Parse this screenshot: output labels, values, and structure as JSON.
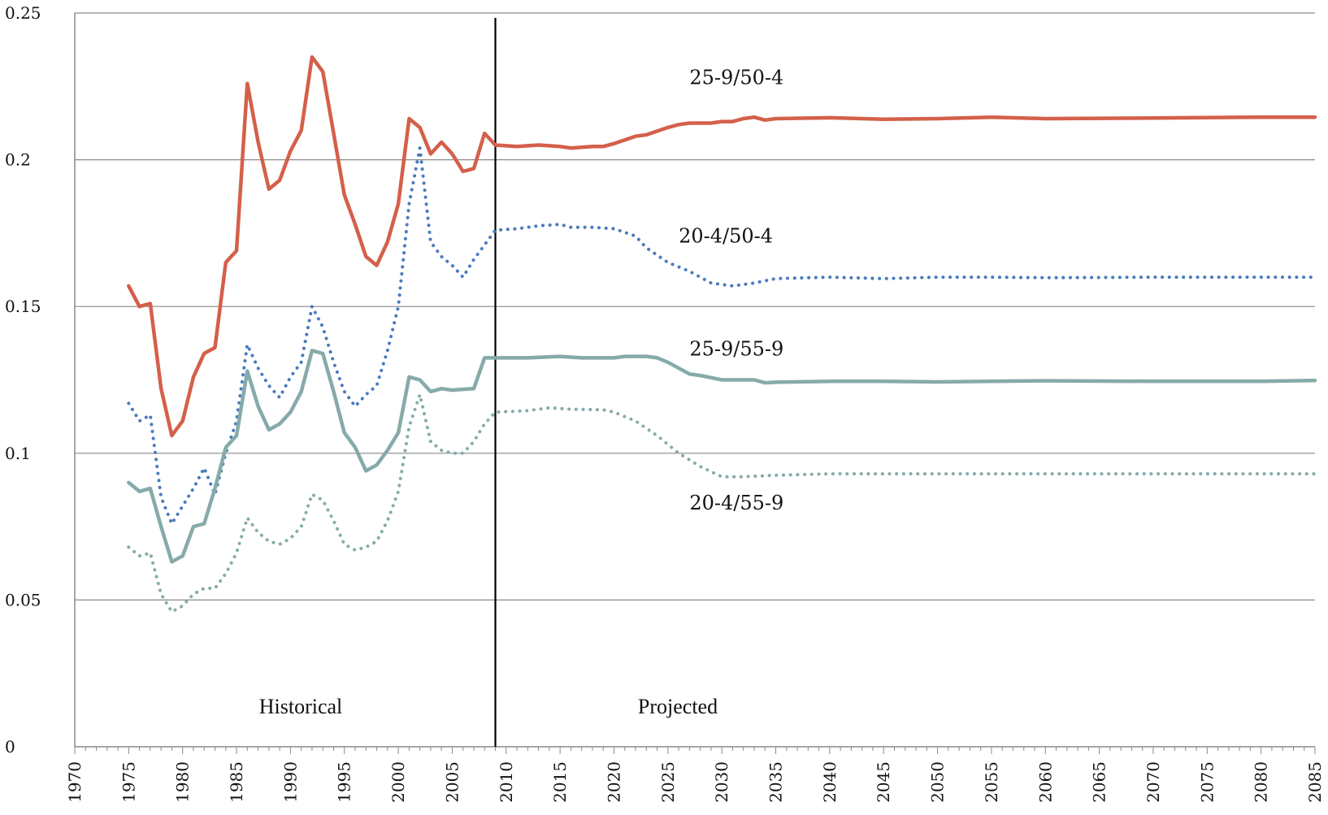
{
  "chart_data": {
    "type": "line",
    "title": "",
    "xlabel": "",
    "ylabel": "",
    "xlim": [
      1970,
      2085
    ],
    "ylim": [
      0,
      0.25
    ],
    "grid": true,
    "y_ticks": [
      {
        "value": 0,
        "label": "0"
      },
      {
        "value": 0.05,
        "label": "0.05"
      },
      {
        "value": 0.1,
        "label": "0.1"
      },
      {
        "value": 0.15,
        "label": "0.15"
      },
      {
        "value": 0.2,
        "label": "0.2"
      },
      {
        "value": 0.25,
        "label": "0.25"
      }
    ],
    "x_ticks": [
      "1970",
      "1975",
      "1980",
      "1985",
      "1990",
      "1995",
      "2000",
      "2005",
      "2010",
      "2015",
      "2020",
      "2025",
      "2030",
      "2035",
      "2040",
      "2045",
      "2050",
      "2055",
      "2060",
      "2065",
      "2070",
      "2075",
      "2080",
      "2085"
    ],
    "divider_year": 2009,
    "region_labels": {
      "historical": "Historical",
      "projected": "Projected"
    },
    "series": [
      {
        "name": "25-9/50-4",
        "color": "#d4604a",
        "style": "solid",
        "label_at": [
          2027,
          0.228
        ],
        "points": [
          [
            1975,
            0.157
          ],
          [
            1976,
            0.15
          ],
          [
            1977,
            0.151
          ],
          [
            1978,
            0.122
          ],
          [
            1979,
            0.106
          ],
          [
            1980,
            0.111
          ],
          [
            1981,
            0.126
          ],
          [
            1982,
            0.134
          ],
          [
            1983,
            0.136
          ],
          [
            1984,
            0.165
          ],
          [
            1985,
            0.169
          ],
          [
            1986,
            0.226
          ],
          [
            1987,
            0.206
          ],
          [
            1988,
            0.19
          ],
          [
            1989,
            0.193
          ],
          [
            1990,
            0.203
          ],
          [
            1991,
            0.21
          ],
          [
            1992,
            0.235
          ],
          [
            1993,
            0.23
          ],
          [
            1994,
            0.209
          ],
          [
            1995,
            0.188
          ],
          [
            1996,
            0.178
          ],
          [
            1997,
            0.167
          ],
          [
            1998,
            0.164
          ],
          [
            1999,
            0.172
          ],
          [
            2000,
            0.185
          ],
          [
            2001,
            0.214
          ],
          [
            2002,
            0.211
          ],
          [
            2003,
            0.202
          ],
          [
            2004,
            0.206
          ],
          [
            2005,
            0.202
          ],
          [
            2006,
            0.196
          ],
          [
            2007,
            0.197
          ],
          [
            2008,
            0.209
          ],
          [
            2009,
            0.205
          ],
          [
            2011,
            0.2045
          ],
          [
            2013,
            0.205
          ],
          [
            2015,
            0.2045
          ],
          [
            2016,
            0.204
          ],
          [
            2018,
            0.2045
          ],
          [
            2019,
            0.2045
          ],
          [
            2020,
            0.2055
          ],
          [
            2022,
            0.208
          ],
          [
            2023,
            0.2085
          ],
          [
            2025,
            0.211
          ],
          [
            2026,
            0.212
          ],
          [
            2027,
            0.2125
          ],
          [
            2029,
            0.2125
          ],
          [
            2030,
            0.213
          ],
          [
            2031,
            0.213
          ],
          [
            2032,
            0.214
          ],
          [
            2033,
            0.2145
          ],
          [
            2034,
            0.2135
          ],
          [
            2035,
            0.214
          ],
          [
            2040,
            0.2143
          ],
          [
            2045,
            0.2138
          ],
          [
            2050,
            0.214
          ],
          [
            2055,
            0.2145
          ],
          [
            2060,
            0.214
          ],
          [
            2070,
            0.2142
          ],
          [
            2080,
            0.2145
          ],
          [
            2085,
            0.2145
          ]
        ]
      },
      {
        "name": "20-4/50-4",
        "color": "#4a7bbd",
        "style": "dotted",
        "label_at": [
          2026,
          0.174
        ],
        "points": [
          [
            1975,
            0.117
          ],
          [
            1976,
            0.111
          ],
          [
            1977,
            0.113
          ],
          [
            1978,
            0.085
          ],
          [
            1979,
            0.076
          ],
          [
            1980,
            0.082
          ],
          [
            1981,
            0.088
          ],
          [
            1982,
            0.095
          ],
          [
            1983,
            0.086
          ],
          [
            1984,
            0.1
          ],
          [
            1985,
            0.111
          ],
          [
            1986,
            0.137
          ],
          [
            1987,
            0.129
          ],
          [
            1988,
            0.123
          ],
          [
            1989,
            0.119
          ],
          [
            1990,
            0.126
          ],
          [
            1991,
            0.131
          ],
          [
            1992,
            0.15
          ],
          [
            1993,
            0.143
          ],
          [
            1994,
            0.131
          ],
          [
            1995,
            0.121
          ],
          [
            1996,
            0.116
          ],
          [
            1997,
            0.12
          ],
          [
            1998,
            0.123
          ],
          [
            1999,
            0.135
          ],
          [
            2000,
            0.15
          ],
          [
            2001,
            0.185
          ],
          [
            2002,
            0.204
          ],
          [
            2003,
            0.172
          ],
          [
            2004,
            0.167
          ],
          [
            2005,
            0.164
          ],
          [
            2006,
            0.16
          ],
          [
            2007,
            0.166
          ],
          [
            2008,
            0.171
          ],
          [
            2009,
            0.176
          ],
          [
            2011,
            0.1765
          ],
          [
            2013,
            0.1775
          ],
          [
            2015,
            0.178
          ],
          [
            2016,
            0.177
          ],
          [
            2018,
            0.177
          ],
          [
            2020,
            0.1765
          ],
          [
            2022,
            0.174
          ],
          [
            2023,
            0.17
          ],
          [
            2025,
            0.165
          ],
          [
            2027,
            0.162
          ],
          [
            2029,
            0.158
          ],
          [
            2031,
            0.157
          ],
          [
            2033,
            0.158
          ],
          [
            2035,
            0.1595
          ],
          [
            2040,
            0.16
          ],
          [
            2045,
            0.1595
          ],
          [
            2050,
            0.16
          ],
          [
            2055,
            0.16
          ],
          [
            2060,
            0.1598
          ],
          [
            2070,
            0.16
          ],
          [
            2080,
            0.16
          ],
          [
            2085,
            0.16
          ]
        ]
      },
      {
        "name": "25-9/55-9",
        "color": "#85aba9",
        "style": "solid",
        "label_at": [
          2027,
          0.1355
        ],
        "points": [
          [
            1975,
            0.09
          ],
          [
            1976,
            0.087
          ],
          [
            1977,
            0.088
          ],
          [
            1978,
            0.075
          ],
          [
            1979,
            0.063
          ],
          [
            1980,
            0.065
          ],
          [
            1981,
            0.075
          ],
          [
            1982,
            0.076
          ],
          [
            1983,
            0.088
          ],
          [
            1984,
            0.102
          ],
          [
            1985,
            0.106
          ],
          [
            1986,
            0.128
          ],
          [
            1987,
            0.116
          ],
          [
            1988,
            0.108
          ],
          [
            1989,
            0.11
          ],
          [
            1990,
            0.114
          ],
          [
            1991,
            0.121
          ],
          [
            1992,
            0.135
          ],
          [
            1993,
            0.134
          ],
          [
            1994,
            0.121
          ],
          [
            1995,
            0.107
          ],
          [
            1996,
            0.102
          ],
          [
            1997,
            0.094
          ],
          [
            1998,
            0.096
          ],
          [
            1999,
            0.101
          ],
          [
            2000,
            0.107
          ],
          [
            2001,
            0.126
          ],
          [
            2002,
            0.125
          ],
          [
            2003,
            0.121
          ],
          [
            2004,
            0.122
          ],
          [
            2005,
            0.1215
          ],
          [
            2006,
            0.1218
          ],
          [
            2007,
            0.122
          ],
          [
            2008,
            0.1325
          ],
          [
            2009,
            0.1325
          ],
          [
            2012,
            0.1325
          ],
          [
            2015,
            0.133
          ],
          [
            2017,
            0.1325
          ],
          [
            2020,
            0.1325
          ],
          [
            2021,
            0.133
          ],
          [
            2023,
            0.133
          ],
          [
            2024,
            0.1325
          ],
          [
            2025,
            0.131
          ],
          [
            2027,
            0.127
          ],
          [
            2028,
            0.1265
          ],
          [
            2030,
            0.125
          ],
          [
            2031,
            0.125
          ],
          [
            2033,
            0.125
          ],
          [
            2034,
            0.124
          ],
          [
            2035,
            0.1242
          ],
          [
            2040,
            0.1245
          ],
          [
            2045,
            0.1245
          ],
          [
            2050,
            0.1243
          ],
          [
            2055,
            0.1245
          ],
          [
            2060,
            0.1247
          ],
          [
            2070,
            0.1245
          ],
          [
            2080,
            0.1245
          ],
          [
            2085,
            0.1248
          ]
        ]
      },
      {
        "name": "20-4/55-9",
        "color": "#85aba9",
        "style": "dotted",
        "label_at": [
          2027,
          0.083
        ],
        "points": [
          [
            1975,
            0.068
          ],
          [
            1976,
            0.065
          ],
          [
            1977,
            0.066
          ],
          [
            1978,
            0.052
          ],
          [
            1979,
            0.046
          ],
          [
            1980,
            0.048
          ],
          [
            1981,
            0.052
          ],
          [
            1982,
            0.054
          ],
          [
            1983,
            0.054
          ],
          [
            1984,
            0.059
          ],
          [
            1985,
            0.066
          ],
          [
            1986,
            0.078
          ],
          [
            1987,
            0.073
          ],
          [
            1988,
            0.07
          ],
          [
            1989,
            0.069
          ],
          [
            1990,
            0.071
          ],
          [
            1991,
            0.075
          ],
          [
            1992,
            0.086
          ],
          [
            1993,
            0.084
          ],
          [
            1994,
            0.077
          ],
          [
            1995,
            0.069
          ],
          [
            1996,
            0.067
          ],
          [
            1997,
            0.068
          ],
          [
            1998,
            0.07
          ],
          [
            1999,
            0.077
          ],
          [
            2000,
            0.087
          ],
          [
            2001,
            0.109
          ],
          [
            2002,
            0.12
          ],
          [
            2003,
            0.104
          ],
          [
            2004,
            0.101
          ],
          [
            2005,
            0.1
          ],
          [
            2006,
            0.1
          ],
          [
            2007,
            0.104
          ],
          [
            2008,
            0.11
          ],
          [
            2009,
            0.114
          ],
          [
            2012,
            0.1145
          ],
          [
            2014,
            0.1155
          ],
          [
            2016,
            0.115
          ],
          [
            2019,
            0.1148
          ],
          [
            2020,
            0.114
          ],
          [
            2022,
            0.111
          ],
          [
            2024,
            0.106
          ],
          [
            2026,
            0.1
          ],
          [
            2028,
            0.0955
          ],
          [
            2030,
            0.092
          ],
          [
            2032,
            0.092
          ],
          [
            2035,
            0.0925
          ],
          [
            2040,
            0.093
          ],
          [
            2050,
            0.093
          ],
          [
            2060,
            0.093
          ],
          [
            2070,
            0.093
          ],
          [
            2080,
            0.093
          ],
          [
            2085,
            0.093
          ]
        ]
      }
    ]
  }
}
